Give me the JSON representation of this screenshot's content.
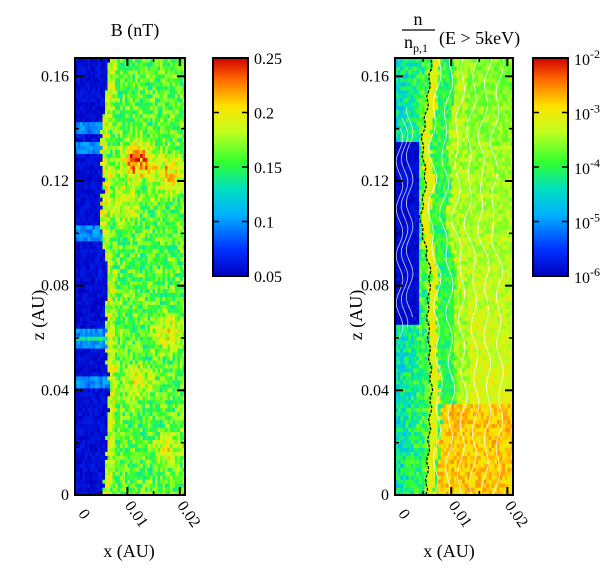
{
  "chart_data": [
    {
      "type": "heatmap",
      "title": "B (nT)",
      "xlabel": "x (AU)",
      "ylabel": "z (AU)",
      "xlim": [
        0,
        0.021
      ],
      "ylim": [
        0,
        0.167
      ],
      "x_ticks": [
        "0",
        "0.01",
        "0.02"
      ],
      "x_tick_values": [
        0,
        0.01,
        0.02
      ],
      "y_ticks": [
        "0",
        "0.04",
        "0.08",
        "0.12",
        "0.16"
      ],
      "y_tick_values": [
        0,
        0.04,
        0.08,
        0.12,
        0.16
      ],
      "colorbar": {
        "scale": "linear",
        "range": [
          0.05,
          0.25
        ],
        "tick_values": [
          0.05,
          0.1,
          0.15,
          0.2,
          0.25
        ],
        "tick_labels": [
          "0.05",
          "0.1",
          "0.15",
          "0.2",
          "0.25"
        ]
      },
      "field": {
        "upstream_value": 0.05,
        "shock_x": [
          0.0055,
          0.006,
          0.0065,
          0.006,
          0.0058,
          0.0063,
          0.0045,
          0.0055,
          0.0048,
          0.0058,
          0.0065
        ],
        "shock_z": [
          0.0,
          0.02,
          0.04,
          0.06,
          0.07,
          0.085,
          0.105,
          0.12,
          0.135,
          0.15,
          0.167
        ],
        "downstream_value": 0.16,
        "hotspots": [
          {
            "x": 0.012,
            "z": 0.128,
            "value": 0.24
          },
          {
            "x": 0.018,
            "z": 0.122,
            "value": 0.22
          },
          {
            "x": 0.009,
            "z": 0.112,
            "value": 0.2
          },
          {
            "x": 0.018,
            "z": 0.062,
            "value": 0.2
          },
          {
            "x": 0.012,
            "z": 0.043,
            "value": 0.19
          },
          {
            "x": 0.018,
            "z": 0.017,
            "value": 0.19
          }
        ],
        "upstream_bands_z": [
          0.133,
          0.14,
          0.058,
          0.062,
          0.043,
          0.1
        ]
      }
    },
    {
      "type": "heatmap",
      "title_numerator": "n",
      "title_denominator": "n",
      "title_denominator_sub": "p,1",
      "title_suffix": "(E > 5keV)",
      "xlabel": "x (AU)",
      "ylabel": "z (AU)",
      "xlim": [
        0,
        0.021
      ],
      "ylim": [
        0,
        0.167
      ],
      "x_ticks": [
        "0",
        "0.01",
        "0.02"
      ],
      "x_tick_values": [
        0,
        0.01,
        0.02
      ],
      "y_ticks": [
        "0",
        "0.04",
        "0.08",
        "0.12",
        "0.16"
      ],
      "y_tick_values": [
        0,
        0.04,
        0.08,
        0.12,
        0.16
      ],
      "colorbar": {
        "scale": "log",
        "range": [
          1e-06,
          0.01
        ],
        "tick_values": [
          -6,
          -5,
          -4,
          -3,
          -2
        ],
        "tick_bases": [
          "10",
          "10",
          "10",
          "10",
          "10"
        ],
        "tick_exponents": [
          "-6",
          "-5",
          "-4",
          "-3",
          "-2"
        ]
      },
      "field": {
        "shock_x": [
          0.0055,
          0.006,
          0.0065,
          0.006,
          0.0058,
          0.0063,
          0.0045,
          0.0055,
          0.0048,
          0.0058,
          0.0065
        ],
        "shock_z": [
          0.0,
          0.02,
          0.04,
          0.06,
          0.07,
          0.085,
          0.105,
          0.12,
          0.135,
          0.15,
          0.167
        ],
        "void_region": {
          "x_max": 0.0045,
          "z_min": 0.065,
          "z_max": 0.135,
          "value_log": -6
        },
        "near_shock_log": -3,
        "far_downstream_log": -3.3,
        "contour_count": 6,
        "contour_color": "#ffffff",
        "shock_line_color": "#000000"
      }
    }
  ]
}
